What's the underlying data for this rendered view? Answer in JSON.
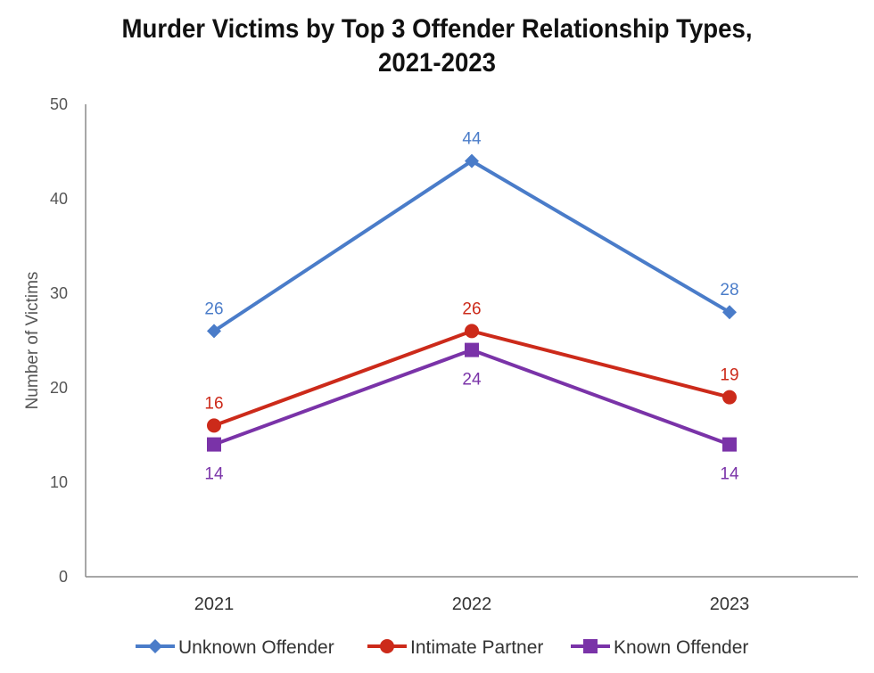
{
  "chart_data": {
    "type": "line",
    "title_line1": "Murder Victims by Top 3 Offender Relationship Types,",
    "title_line2": "2021-2023",
    "xlabel": "",
    "ylabel": "Number of Victims",
    "categories": [
      "2021",
      "2022",
      "2023"
    ],
    "ylim": [
      0,
      50
    ],
    "yticks": [
      0,
      10,
      20,
      30,
      40,
      50
    ],
    "grid": false,
    "legend_position": "bottom",
    "series": [
      {
        "name": "Unknown Offender",
        "values": [
          26,
          44,
          28
        ],
        "color": "#4a7cc9",
        "marker": "diamond",
        "label_pos": "above"
      },
      {
        "name": "Intimate Partner",
        "values": [
          16,
          26,
          19
        ],
        "color": "#cc2a1a",
        "marker": "circle",
        "label_pos": "above"
      },
      {
        "name": "Known Offender",
        "values": [
          14,
          24,
          14
        ],
        "color": "#7a33a8",
        "marker": "square",
        "label_pos": "below"
      }
    ]
  }
}
